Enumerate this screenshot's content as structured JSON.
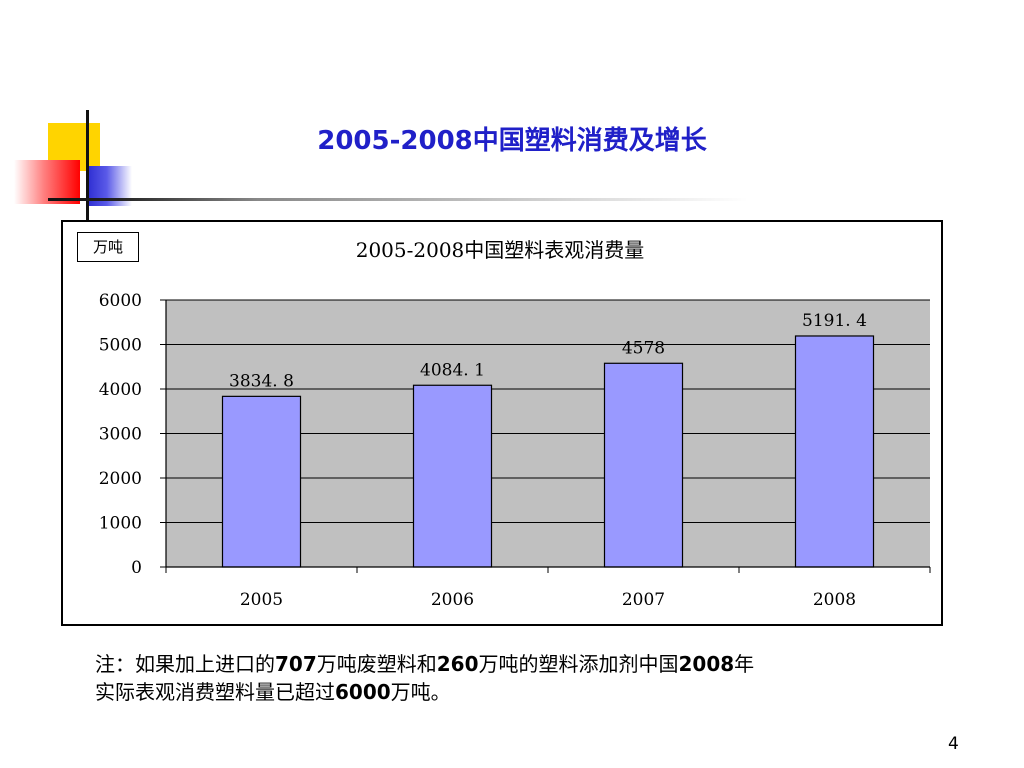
{
  "slide": {
    "title": "2005-2008中国塑料消费及增长",
    "page_number": "4"
  },
  "chart_data": {
    "type": "bar",
    "title": "2005-2008中国塑料表观消费量",
    "unit": "万吨",
    "categories": [
      "2005",
      "2006",
      "2007",
      "2008"
    ],
    "values": [
      3834.8,
      4084.1,
      4578,
      5191.4
    ],
    "value_labels": [
      "3834. 8",
      "4084. 1",
      "4578",
      "5191. 4"
    ],
    "ylim": [
      0,
      6000
    ],
    "yticks": [
      0,
      1000,
      2000,
      3000,
      4000,
      5000,
      6000
    ],
    "grid": true,
    "colors": {
      "bar_fill": "#9999ff",
      "plot_background": "#c0c0c0"
    }
  },
  "note": {
    "line1_parts": [
      "注：如果加上进口的",
      "707",
      "万吨废塑料和",
      "260",
      "万吨的塑料添加剂中国",
      "2008",
      "年"
    ],
    "line2_parts": [
      "实际表观消费塑料量已超过",
      "6000",
      "万吨。"
    ]
  },
  "colors": {
    "title_color": "#2020c8",
    "deco_yellow": "#ffd400",
    "deco_blue": "#2a2ad0",
    "deco_red": "#ff0000"
  }
}
